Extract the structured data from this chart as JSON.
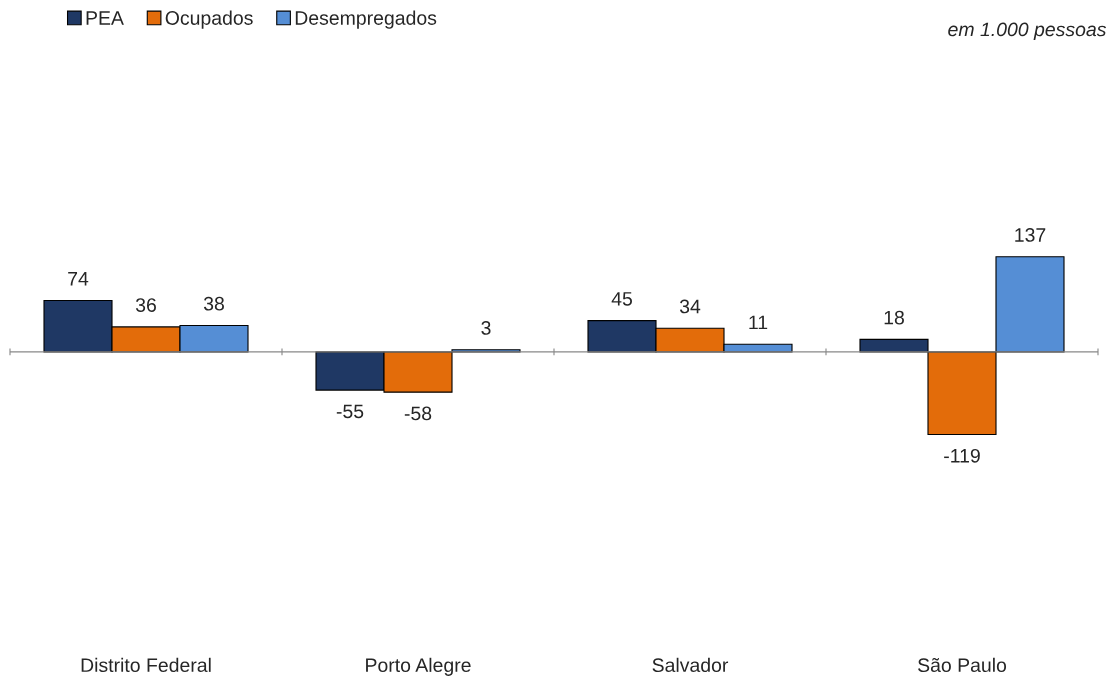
{
  "chart_data": {
    "type": "bar",
    "categories": [
      "Distrito Federal",
      "Porto Alegre",
      "Salvador",
      "São Paulo"
    ],
    "series": [
      {
        "name": "PEA",
        "color": "#1f3864",
        "values": [
          74,
          -55,
          45,
          18
        ]
      },
      {
        "name": "Ocupados",
        "color": "#e36c0a",
        "values": [
          36,
          -58,
          34,
          -119
        ]
      },
      {
        "name": "Desempregados",
        "color": "#558ed5",
        "values": [
          38,
          3,
          11,
          137
        ]
      }
    ],
    "data_labels": true,
    "legend": "top left",
    "grid": false,
    "annotations": [
      "em 1.000 pessoas"
    ]
  }
}
